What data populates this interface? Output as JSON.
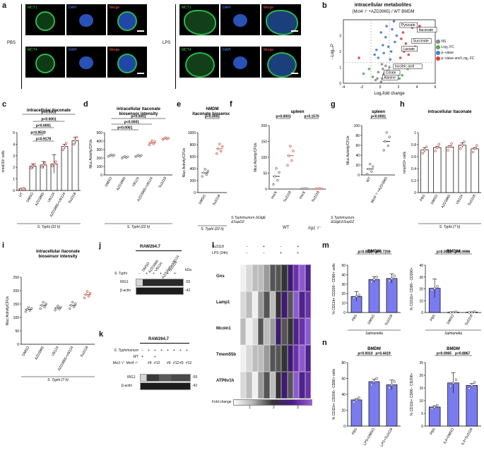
{
  "panel_letters": [
    "a",
    "b",
    "c",
    "d",
    "e",
    "f",
    "g",
    "h",
    "i",
    "j",
    "k",
    "l",
    "m",
    "n"
  ],
  "panel_a": {
    "conditions": [
      "PBS",
      "LPS"
    ],
    "channels_row1": [
      "MCT1",
      "DAPI",
      "Merge"
    ],
    "channels_row2": [
      "MCT4",
      "DAPI",
      "Merge"
    ]
  },
  "panel_b": {
    "title": "intracellular metabolites",
    "subtitle": "(Mct4⁻/⁻+AZD3965) / WT BMDM",
    "xlabel": "Log₂fold change",
    "ylabel": "−Log₁₀P",
    "legend": [
      "NS",
      "Log₂ FC",
      "p−value",
      "p−value and Log₂ FC"
    ],
    "legend_colors": [
      "#888888",
      "#4caf50",
      "#4a7bd0",
      "#e53935"
    ],
    "labels": [
      "Pyruvate",
      "Itaconate",
      "Succinate",
      "Lactate",
      "Isocitric acid",
      "Citrate",
      "Alanine"
    ]
  },
  "common": {
    "styphi22": "S. Typhi (22 h)",
    "styphi7": "S. Typhi (7 h)"
  },
  "panel_f": {
    "ylabel": "Nluc Activity/CFUs",
    "group1": "WT",
    "group2": "Irg1⁻/⁻",
    "row_label": "S.Typhimurium ΔGlgE ΔSopD2"
  },
  "panel_g": {
    "row_label": "S.Typhimurium ΔGlgEΔSopD2"
  },
  "panel_j": {
    "title": "RAW264.7",
    "lanes": [
      "DMSO",
      "AZD3965",
      "VB124",
      "AZD3965+VB124",
      "Su3118"
    ],
    "row_label": "S. Typhi",
    "signs": [
      "−",
      "+",
      "+",
      "+",
      "+",
      "+"
    ],
    "bands": [
      "IRG1",
      "β-actin"
    ],
    "kda": [
      "55",
      "42"
    ],
    "kda_label": "kDa"
  },
  "panel_k": {
    "title": "RAW264.7",
    "rows": [
      {
        "label": "S. Typhimurium",
        "vals": [
          "−",
          "+",
          "+",
          "+",
          "+",
          "+",
          "+",
          "+"
        ]
      },
      {
        "label": "WT",
        "vals": [
          "+",
          "",
          "+",
          "",
          "",
          "",
          "",
          ""
        ]
      },
      {
        "label": "Mct1⁺/⁻ Mct4⁻/⁻",
        "vals": [
          "",
          "#9",
          "#12",
          "",
          "#9",
          "#12",
          "#9",
          "#12"
        ]
      }
    ],
    "bands": [
      "IRG1",
      "β-actin"
    ],
    "kda": [
      "55",
      "42"
    ]
  },
  "panel_l": {
    "rows": [
      {
        "label": "Su3118",
        "vals": [
          "−",
          "+",
          "−",
          "+"
        ]
      },
      {
        "label": "LPS (24h)",
        "vals": [
          "−",
          "−",
          "+",
          "+"
        ]
      }
    ],
    "genes": [
      "Gns",
      "Lamp1",
      "Mcoln1",
      "Tmem55b",
      "ATP6v1h"
    ],
    "legend_title": "Fold change",
    "legend_ticks": [
      "1",
      "2",
      "3"
    ]
  },
  "chart_data": [
    {
      "id": "b",
      "type": "scatter",
      "title": "intracellular metabolites",
      "xlabel": "Log₂fold change",
      "ylabel": "−Log₁₀P",
      "xlim": [
        -4,
        6
      ],
      "ylim": [
        0,
        4
      ],
      "xticks": [
        -4,
        -2,
        0,
        2,
        4,
        6
      ],
      "yticks": [
        0,
        1,
        2,
        3
      ],
      "series": [
        {
          "name": "NS",
          "points": [
            [
              -0.5,
              0.2
            ],
            [
              0.2,
              0.3
            ],
            [
              0.5,
              0.5
            ],
            [
              -0.2,
              0.7
            ],
            [
              0.8,
              0.4
            ],
            [
              0.3,
              0.9
            ],
            [
              1.0,
              1.0
            ],
            [
              -0.8,
              0.4
            ],
            [
              0.6,
              1.1
            ],
            [
              0.1,
              0.1
            ],
            [
              -0.3,
              0.3
            ],
            [
              0.4,
              0.6
            ],
            [
              0.9,
              0.8
            ],
            [
              0.2,
              1.2
            ]
          ]
        },
        {
          "name": "Log₂ FC",
          "points": [
            [
              -1.8,
              0.6
            ],
            [
              -1.2,
              0.9
            ],
            [
              2.4,
              0.5
            ],
            [
              3.0,
              0.9
            ],
            [
              2.1,
              0.3
            ],
            [
              3.5,
              1.0
            ]
          ]
        },
        {
          "name": "p−value",
          "points": [
            [
              -0.2,
              1.6
            ],
            [
              0.4,
              1.9
            ],
            [
              0.9,
              2.3
            ],
            [
              0.6,
              2.9
            ],
            [
              0.1,
              3.2
            ],
            [
              1.3,
              3.4
            ],
            [
              1.6,
              2.6
            ],
            [
              1.1,
              1.5
            ],
            [
              -0.6,
              1.8
            ],
            [
              0.7,
              3.6
            ],
            [
              1.5,
              3.9
            ],
            [
              0.3,
              2.4
            ],
            [
              -0.4,
              2.1
            ],
            [
              1.8,
              3.0
            ],
            [
              1.2,
              2.0
            ]
          ]
        },
        {
          "name": "p−value and Log₂ FC",
          "points": [
            [
              2.3,
              2.8
            ],
            [
              2.8,
              2.5
            ],
            [
              3.5,
              3.5
            ],
            [
              4.3,
              3.6
            ],
            [
              2.6,
              2.0
            ],
            [
              3.1,
              1.8
            ],
            [
              2.2,
              1.6
            ],
            [
              -2.3,
              1.6
            ],
            [
              3.8,
              2.3
            ],
            [
              2.5,
              3.2
            ]
          ]
        }
      ],
      "annotations": [
        "Pyruvate",
        "Itaconate",
        "Succinate",
        "Lactate",
        "Isocitric acid",
        "Citrate",
        "Alanine"
      ]
    },
    {
      "id": "c",
      "type": "bar",
      "title": "intracellular itaconate",
      "ylabel": "nmol/10⁶ cells",
      "ylim": [
        0,
        5
      ],
      "yticks": [
        0,
        1,
        2,
        3,
        4,
        5
      ],
      "categories": [
        "UT",
        "DMSO",
        "AZD3965",
        "VB124",
        "AZD3965+VB124",
        "Su3118"
      ],
      "values": [
        0.15,
        2.1,
        2.2,
        2.3,
        3.8,
        4.3
      ],
      "xgroup": "S. Typhi (22 h)",
      "stats": [
        "p<0.0001",
        "p<0.0001",
        "p<0.0001",
        "p=0.9533",
        "p=0.9178"
      ]
    },
    {
      "id": "d",
      "type": "scatter",
      "title": "intracellular itaconate biosensor intensity",
      "ylabel": "Nluc Activity/CFUs",
      "ylim": [
        0,
        500
      ],
      "yticks": [
        0,
        100,
        200,
        300,
        400,
        500
      ],
      "categories": [
        "DMSO",
        "AZD3965",
        "VB124",
        "AZD3965+VB124",
        "Su3118"
      ],
      "values": [
        230,
        210,
        225,
        380,
        430
      ],
      "xgroup": "S. Typhi (22 h)",
      "stats": [
        "p<0.0001",
        "p<0.0001",
        "p<0.0001"
      ]
    },
    {
      "id": "e",
      "type": "scatter",
      "title": "hMDM itaconate biosensor",
      "ylabel": "Nluc Activity/CFUs",
      "ylim": [
        0,
        1000
      ],
      "yticks": [
        0,
        200,
        400,
        600,
        800,
        1000
      ],
      "categories": [
        "DMSO",
        "Su3118"
      ],
      "values": [
        330,
        730
      ],
      "xgroup": "S. Typhi (22 h)",
      "stats": [
        "p<0.0001"
      ]
    },
    {
      "id": "f",
      "type": "scatter",
      "title": "spleen",
      "ylabel": "Nluc Activity/CFUs",
      "ylim": [
        0,
        200
      ],
      "yticks": [
        0,
        50,
        100,
        150,
        200
      ],
      "categories": [
        "mock",
        "Su3118",
        "mock",
        "Su3118"
      ],
      "values": [
        40,
        105,
        1,
        1
      ],
      "stats": [
        "p<0.0001",
        "p=0.1570"
      ]
    },
    {
      "id": "g",
      "type": "scatter",
      "title": "spleen",
      "ylabel": "Nluc Activity/CFUs",
      "ylim": [
        0,
        100
      ],
      "yticks": [
        0,
        20,
        40,
        60,
        80,
        100
      ],
      "categories": [
        "WT",
        "Mct4⁻/⁻+AZD3965"
      ],
      "values": [
        12,
        68
      ],
      "stats": [
        "p<0.0001"
      ]
    },
    {
      "id": "h",
      "type": "bar",
      "title": "intracellular itaconate",
      "ylabel": "nmol/10⁶ cells",
      "ylim": [
        0,
        1.0
      ],
      "yticks": [
        0.0,
        0.2,
        0.4,
        0.6,
        0.8,
        1.0
      ],
      "categories": [
        "PBS",
        "DMSO",
        "AZD3965",
        "VB124",
        "Su3118"
      ],
      "values": [
        0.71,
        0.75,
        0.76,
        0.79,
        0.73
      ],
      "xgroup": "S. Typhi (7 h)"
    },
    {
      "id": "i",
      "type": "scatter",
      "title": "intracellular itaconate biosensor intensity",
      "ylabel": "Nluc Activity/CFUs",
      "ylim": [
        0,
        250
      ],
      "yticks": [
        0,
        50,
        100,
        150,
        200,
        250
      ],
      "categories": [
        "DMSO",
        "AZD3965",
        "VB124",
        "AZD3965+VB124",
        "Su3118"
      ],
      "values": [
        130,
        145,
        135,
        145,
        185
      ],
      "xgroup": "S. Typhi (7 h)"
    },
    {
      "id": "m1",
      "type": "bar",
      "title": "BMDM",
      "ylabel": "% CD11b+ CD206− CD86+ cells",
      "ylim": [
        0,
        50
      ],
      "yticks": [
        0,
        10,
        20,
        30,
        40,
        50
      ],
      "categories": [
        "PBS",
        "DMSO",
        "Su3118"
      ],
      "values": [
        17,
        35,
        36
      ],
      "xgroup": "Salmonella",
      "stats": [
        "p=0.0030",
        "p=0.7259"
      ]
    },
    {
      "id": "m2",
      "type": "bar",
      "title": "BMDM",
      "ylabel": "% CD11b+ CD86− CD206+",
      "ylim": [
        0,
        40
      ],
      "yticks": [
        0,
        10,
        20,
        30,
        40
      ],
      "categories": [
        "PBS",
        "DMSO",
        "Su3118"
      ],
      "values": [
        20.5,
        0.3,
        0.3
      ],
      "xgroup": "Salmonella",
      "stats": [
        "p=0.0032",
        "p=0.9996"
      ]
    },
    {
      "id": "n1",
      "type": "bar",
      "title": "BMDM",
      "ylabel": "% CD11b+ CD206− CD86+ cells",
      "ylim": [
        0,
        80
      ],
      "yticks": [
        0,
        20,
        40,
        60,
        80
      ],
      "categories": [
        "PBS",
        "LPS+DMSO",
        "LPS+Su3118"
      ],
      "values": [
        33,
        56,
        52
      ],
      "stats": [
        "p=0.0010",
        "p=0.4419"
      ]
    },
    {
      "id": "n2",
      "type": "bar",
      "title": "BMDM",
      "ylabel": "% CD11b+ CD86− CD206+",
      "ylim": [
        0,
        25
      ],
      "yticks": [
        0,
        5,
        10,
        15,
        20,
        25
      ],
      "categories": [
        "PBS",
        "IL4+DMSO",
        "IL4+Su3118"
      ],
      "values": [
        7.5,
        17,
        16
      ],
      "stats": [
        "p=0.0065",
        "p=0.8867"
      ]
    }
  ]
}
